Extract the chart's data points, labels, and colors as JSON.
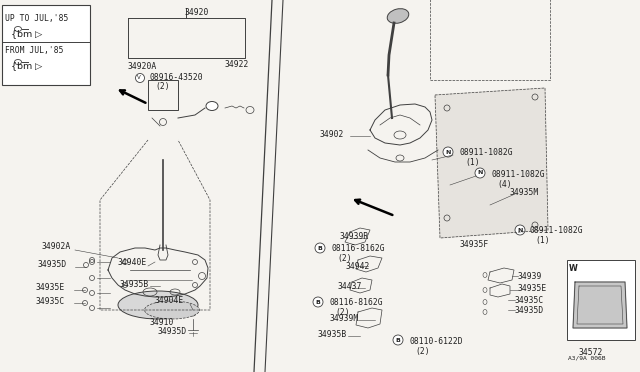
{
  "bg_color": "#f2f0ec",
  "line_color": "#404040",
  "text_color": "#202020",
  "figsize": [
    6.4,
    3.72
  ],
  "dpi": 100,
  "xlim": [
    0,
    640
  ],
  "ylim": [
    0,
    372
  ]
}
